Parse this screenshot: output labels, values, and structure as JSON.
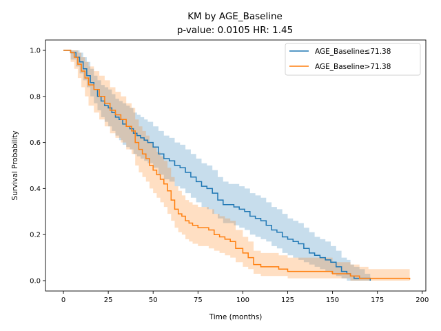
{
  "chart_data": {
    "type": "line",
    "title": "KM by AGE_Baseline",
    "subtitle": "p-value: 0.0105  HR: 1.45",
    "xlabel": "Time (months)",
    "ylabel": "Survival Probability",
    "xlim": [
      -10,
      202
    ],
    "ylim": [
      -0.045,
      1.045
    ],
    "xticks": [
      0,
      25,
      50,
      75,
      100,
      125,
      150,
      175,
      200
    ],
    "yticks": [
      0.0,
      0.2,
      0.4,
      0.6,
      0.8,
      1.0
    ],
    "xtick_labels": [
      "0",
      "25",
      "50",
      "75",
      "100",
      "125",
      "150",
      "175",
      "200"
    ],
    "ytick_labels": [
      "0.0",
      "0.2",
      "0.4",
      "0.6",
      "0.8",
      "1.0"
    ],
    "grid": false,
    "legend_position": "top-right",
    "series": [
      {
        "name": "AGE_Baseline≤71.38",
        "color": "#1f77b4",
        "x": [
          0,
          4,
          7,
          9,
          11,
          13,
          15,
          17,
          19,
          21,
          23,
          25,
          27,
          29,
          31,
          33,
          35,
          37,
          39,
          41,
          43,
          45,
          47,
          50,
          53,
          56,
          59,
          62,
          65,
          68,
          71,
          74,
          77,
          80,
          83,
          86,
          89,
          92,
          95,
          98,
          101,
          104,
          107,
          110,
          113,
          116,
          119,
          122,
          125,
          128,
          131,
          134,
          137,
          140,
          143,
          146,
          149,
          152,
          155,
          158,
          160,
          162,
          165,
          168,
          171
        ],
        "y": [
          1.0,
          0.99,
          0.97,
          0.95,
          0.92,
          0.89,
          0.86,
          0.83,
          0.8,
          0.78,
          0.76,
          0.75,
          0.73,
          0.71,
          0.7,
          0.68,
          0.67,
          0.66,
          0.64,
          0.63,
          0.62,
          0.61,
          0.6,
          0.58,
          0.55,
          0.53,
          0.52,
          0.5,
          0.49,
          0.47,
          0.45,
          0.43,
          0.41,
          0.4,
          0.38,
          0.35,
          0.33,
          0.33,
          0.32,
          0.31,
          0.3,
          0.28,
          0.27,
          0.26,
          0.24,
          0.22,
          0.21,
          0.19,
          0.18,
          0.17,
          0.16,
          0.14,
          0.12,
          0.11,
          0.1,
          0.09,
          0.08,
          0.06,
          0.04,
          0.03,
          0.02,
          0.01,
          0.01,
          0.01,
          0.0
        ],
        "ci_lower": [
          1.0,
          0.96,
          0.93,
          0.9,
          0.87,
          0.84,
          0.8,
          0.77,
          0.74,
          0.71,
          0.69,
          0.67,
          0.65,
          0.63,
          0.61,
          0.59,
          0.58,
          0.57,
          0.55,
          0.54,
          0.53,
          0.52,
          0.51,
          0.49,
          0.46,
          0.44,
          0.43,
          0.41,
          0.4,
          0.38,
          0.36,
          0.34,
          0.32,
          0.31,
          0.29,
          0.27,
          0.25,
          0.25,
          0.24,
          0.23,
          0.22,
          0.2,
          0.19,
          0.18,
          0.17,
          0.15,
          0.14,
          0.12,
          0.11,
          0.1,
          0.09,
          0.08,
          0.07,
          0.06,
          0.05,
          0.04,
          0.03,
          0.02,
          0.01,
          0.0,
          0.0,
          0.0,
          0.0,
          0.0,
          0.0
        ],
        "ci_upper": [
          1.0,
          1.0,
          1.0,
          0.99,
          0.97,
          0.95,
          0.92,
          0.89,
          0.87,
          0.85,
          0.84,
          0.83,
          0.81,
          0.79,
          0.78,
          0.77,
          0.76,
          0.75,
          0.73,
          0.72,
          0.71,
          0.7,
          0.69,
          0.67,
          0.65,
          0.63,
          0.62,
          0.6,
          0.59,
          0.57,
          0.55,
          0.53,
          0.51,
          0.5,
          0.48,
          0.45,
          0.43,
          0.42,
          0.42,
          0.41,
          0.4,
          0.38,
          0.37,
          0.36,
          0.34,
          0.32,
          0.31,
          0.29,
          0.27,
          0.26,
          0.25,
          0.23,
          0.21,
          0.19,
          0.18,
          0.17,
          0.15,
          0.13,
          0.1,
          0.09,
          0.07,
          0.06,
          0.05,
          0.03,
          0.02
        ]
      },
      {
        "name": "AGE_Baseline>71.38",
        "color": "#ff7f0e",
        "x": [
          0,
          4,
          6,
          8,
          10,
          12,
          14,
          17,
          20,
          23,
          26,
          29,
          32,
          35,
          38,
          40,
          42,
          44,
          46,
          48,
          50,
          52,
          54,
          56,
          58,
          60,
          62,
          64,
          66,
          68,
          70,
          72,
          75,
          78,
          81,
          84,
          87,
          90,
          93,
          96,
          100,
          103,
          106,
          110,
          115,
          120,
          125,
          130,
          135,
          140,
          145,
          150,
          155,
          160,
          165,
          170,
          175,
          180,
          185,
          193
        ],
        "y": [
          1.0,
          0.99,
          0.97,
          0.94,
          0.91,
          0.88,
          0.85,
          0.83,
          0.8,
          0.77,
          0.74,
          0.72,
          0.7,
          0.67,
          0.65,
          0.6,
          0.57,
          0.55,
          0.53,
          0.5,
          0.48,
          0.46,
          0.44,
          0.42,
          0.39,
          0.35,
          0.31,
          0.29,
          0.28,
          0.26,
          0.25,
          0.24,
          0.23,
          0.23,
          0.22,
          0.2,
          0.19,
          0.18,
          0.17,
          0.14,
          0.12,
          0.1,
          0.07,
          0.06,
          0.06,
          0.05,
          0.04,
          0.04,
          0.04,
          0.04,
          0.04,
          0.03,
          0.03,
          0.02,
          0.01,
          0.01,
          0.01,
          0.01,
          0.01,
          0.005
        ],
        "ci_lower": [
          1.0,
          0.95,
          0.92,
          0.88,
          0.84,
          0.8,
          0.76,
          0.73,
          0.7,
          0.67,
          0.64,
          0.62,
          0.6,
          0.57,
          0.55,
          0.5,
          0.47,
          0.45,
          0.43,
          0.4,
          0.38,
          0.36,
          0.34,
          0.32,
          0.29,
          0.26,
          0.23,
          0.21,
          0.2,
          0.18,
          0.17,
          0.16,
          0.15,
          0.15,
          0.14,
          0.13,
          0.12,
          0.11,
          0.1,
          0.08,
          0.06,
          0.05,
          0.03,
          0.02,
          0.02,
          0.02,
          0.01,
          0.01,
          0.01,
          0.01,
          0.01,
          0.01,
          0.01,
          0.0,
          0.0,
          0.0,
          0.0,
          0.0,
          0.0,
          0.0
        ],
        "ci_upper": [
          1.0,
          1.0,
          1.0,
          0.99,
          0.97,
          0.95,
          0.93,
          0.91,
          0.89,
          0.87,
          0.84,
          0.82,
          0.8,
          0.77,
          0.75,
          0.7,
          0.67,
          0.65,
          0.63,
          0.6,
          0.58,
          0.56,
          0.54,
          0.52,
          0.49,
          0.45,
          0.41,
          0.39,
          0.37,
          0.35,
          0.34,
          0.33,
          0.32,
          0.32,
          0.31,
          0.29,
          0.28,
          0.27,
          0.26,
          0.22,
          0.19,
          0.17,
          0.13,
          0.12,
          0.12,
          0.11,
          0.1,
          0.1,
          0.1,
          0.1,
          0.1,
          0.08,
          0.08,
          0.07,
          0.06,
          0.05,
          0.05,
          0.05,
          0.05,
          0.05
        ]
      }
    ]
  }
}
